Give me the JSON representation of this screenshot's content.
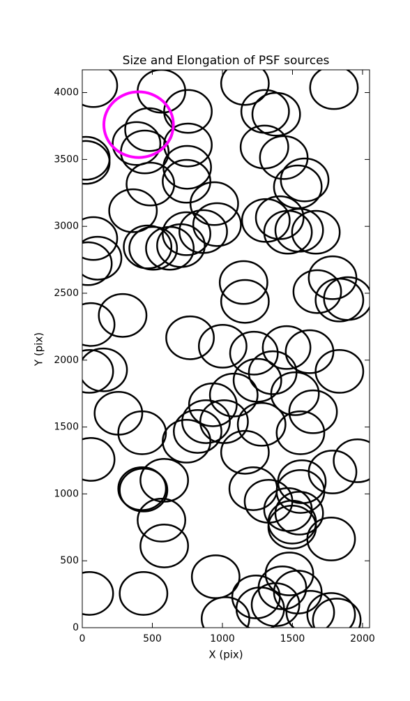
{
  "chart_data": {
    "type": "ellipse",
    "title": "Size and Elongation of PSF sources",
    "xlabel": "X (pix)",
    "ylabel": "Y (pix)",
    "xlim": [
      0,
      2050
    ],
    "ylim": [
      0,
      4170
    ],
    "xticks": [
      0,
      500,
      1000,
      1500,
      2000
    ],
    "yticks": [
      0,
      500,
      1000,
      1500,
      2000,
      2500,
      3000,
      3500,
      4000
    ],
    "series": [
      {
        "color": "#000000",
        "width": 340,
        "height": 320,
        "x": [
          79,
          565,
          1161,
          1796,
          754,
          1305,
          1384,
          476,
          387,
          446,
          754,
          1300,
          1438,
          25,
          25,
          749,
          744,
          486,
          1587,
          1538,
          362,
          942,
          962,
          863,
          744,
          79,
          1310,
          1409,
          1468,
          1548,
          1667,
          704,
          625,
          466,
          506,
          109,
          40,
          1151,
          1161,
          1786,
          1677,
          1835,
          1895,
          288,
          60,
          769,
          1002,
          1225,
          1458,
          1622,
          149,
          50,
          1835,
          1250,
          1359,
          1081,
          932,
          1518,
          1647,
          258,
          883,
          1012,
          1280,
          823,
          427,
          744,
          1557,
          1161,
          60,
          1786,
          1964,
          585,
          427,
          437,
          1220,
          1329,
          1567,
          1557,
          1468,
          1548,
          1498,
          1498,
          565,
          1776,
          585,
          952,
          50,
          437,
          1478,
          1428,
          1538,
          1240,
          1270,
          1379,
          1627,
          1776,
          1816,
          1022
        ],
        "values": [
          4052,
          4010,
          4068,
          4037,
          3859,
          3859,
          3838,
          3723,
          3619,
          3556,
          3608,
          3593,
          3514,
          3509,
          3478,
          3441,
          3337,
          3316,
          3347,
          3295,
          3117,
          3170,
          3013,
          2961,
          2945,
          2909,
          3044,
          3065,
          2956,
          2971,
          2956,
          2856,
          2836,
          2846,
          2836,
          2762,
          2721,
          2580,
          2439,
          2616,
          2512,
          2449,
          2460,
          2334,
          2266,
          2167,
          2104,
          2052,
          2094,
          2063,
          1927,
          1916,
          1916,
          1849,
          1906,
          1739,
          1666,
          1749,
          1614,
          1603,
          1540,
          1540,
          1520,
          1467,
          1457,
          1394,
          1457,
          1311,
          1258,
          1164,
          1248,
          1102,
          1039,
          1029,
          1039,
          945,
          1091,
          1018,
          883,
          856,
          789,
          752,
          804,
          663,
          611,
          381,
          256,
          256,
          402,
          298,
          266,
          230,
          141,
          172,
          115,
          99,
          57,
          68
        ]
      },
      {
        "color": "#ff00ff",
        "width": 496,
        "height": 491,
        "x": [
          402
        ],
        "values": [
          3760
        ]
      }
    ]
  }
}
